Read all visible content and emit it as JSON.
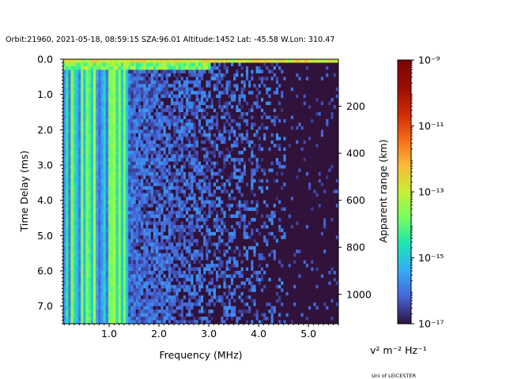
{
  "header": {
    "info_line": "Orbit:21960, 2021-05-18, 08:59:15 SZA:96.01 Altitude:1452 Lat: -45.58 W.Lon: 310.47"
  },
  "credit": "Uni of LEICESTER",
  "chart_data": {
    "type": "heatmap",
    "xlabel": "Frequency (MHz)",
    "ylabel": "Time Delay (ms)",
    "y2label": "Apparent range (km)",
    "colorbar_label": "v² m⁻² Hz⁻¹",
    "xlim": [
      0.08,
      5.6
    ],
    "ylim": [
      7.5,
      0.0
    ],
    "y2lim": [
      1125,
      0
    ],
    "x_ticks": [
      1.0,
      2.0,
      3.0,
      4.0,
      5.0
    ],
    "x_tick_labels": [
      "1.0",
      "2.0",
      "3.0",
      "4.0",
      "5.0"
    ],
    "y_ticks": [
      0,
      1,
      2,
      3,
      4,
      5,
      6,
      7
    ],
    "y_tick_labels": [
      "0.0",
      "1.0",
      "2.0",
      "3.0",
      "4.0",
      "5.0",
      "6.0",
      "7.0"
    ],
    "y2_ticks": [
      200,
      400,
      600,
      800,
      1000
    ],
    "y2_tick_labels": [
      "200",
      "400",
      "600",
      "800",
      "1000"
    ],
    "colorbar": {
      "scale": "log",
      "range": [
        1e-17,
        1e-09
      ],
      "colormap": "turbo",
      "tick_exponents": [
        -17,
        -15,
        -13,
        -11,
        -9
      ],
      "tick_labels": [
        "10⁻¹⁷",
        "10⁻¹⁵",
        "10⁻¹³",
        "10⁻¹¹",
        "10⁻⁹"
      ]
    },
    "features": {
      "strong_band_max_freq_mhz": 1.38,
      "scatter_extent_mhz": 4.5,
      "background_exponent": -17,
      "surface_echo_delay_ms": 0.1
    }
  },
  "colors": {
    "background_cell": "#30123b",
    "axis": "#000000"
  }
}
